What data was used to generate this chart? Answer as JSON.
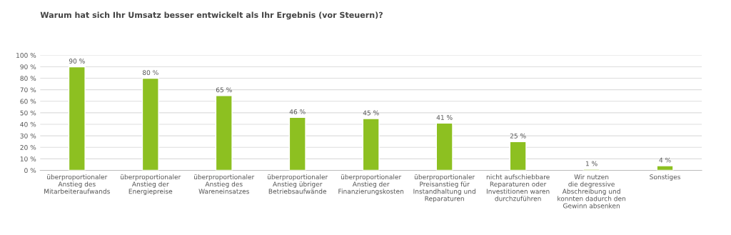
{
  "chart_data": {
    "type": "bar",
    "title": "Warum hat sich Ihr Umsatz besser entwickelt als Ihr Ergebnis (vor Steuern)?",
    "categories": [
      "überproportionaler\nAnstieg des\nMitarbeiteraufwands",
      "überproportionaler\nAnstieg der\nEnergiepreise",
      "überproportionaler\nAnstieg des\nWareneinsatzes",
      "überproportionaler\nAnstieg übriger\nBetriebsaufwände",
      "überproportionaler\nAnstieg der\nFinanzierungskosten",
      "überproportionaler\nPreisanstieg für\nInstandhaltung und\nReparaturen",
      "nicht aufschiebbare\nReparaturen oder\nInvestitionen waren\ndurchzuführen",
      "Wir nutzen\ndie degressive\nAbschreibung und\nkonnten dadurch den\nGewinn absenken",
      "Sonstiges"
    ],
    "values": [
      90,
      80,
      65,
      46,
      45,
      41,
      25,
      1,
      4
    ],
    "value_labels": [
      "90 %",
      "80 %",
      "65 %",
      "46 %",
      "45 %",
      "41 %",
      "25 %",
      "1 %",
      "4 %"
    ],
    "color": "#8dc021",
    "ylim": [
      0,
      100
    ],
    "yticks": [
      {
        "value": 0,
        "label": "0 %"
      },
      {
        "value": 10,
        "label": "10 %"
      },
      {
        "value": 20,
        "label": "20 %"
      },
      {
        "value": 30,
        "label": "30 %"
      },
      {
        "value": 40,
        "label": "40 %"
      },
      {
        "value": 50,
        "label": "50 %"
      },
      {
        "value": 60,
        "label": "60 %"
      },
      {
        "value": 70,
        "label": "70 %"
      },
      {
        "value": 80,
        "label": "80 %"
      },
      {
        "value": 90,
        "label": "90 %"
      },
      {
        "value": 100,
        "label": "100 %"
      }
    ],
    "grid": "y"
  }
}
